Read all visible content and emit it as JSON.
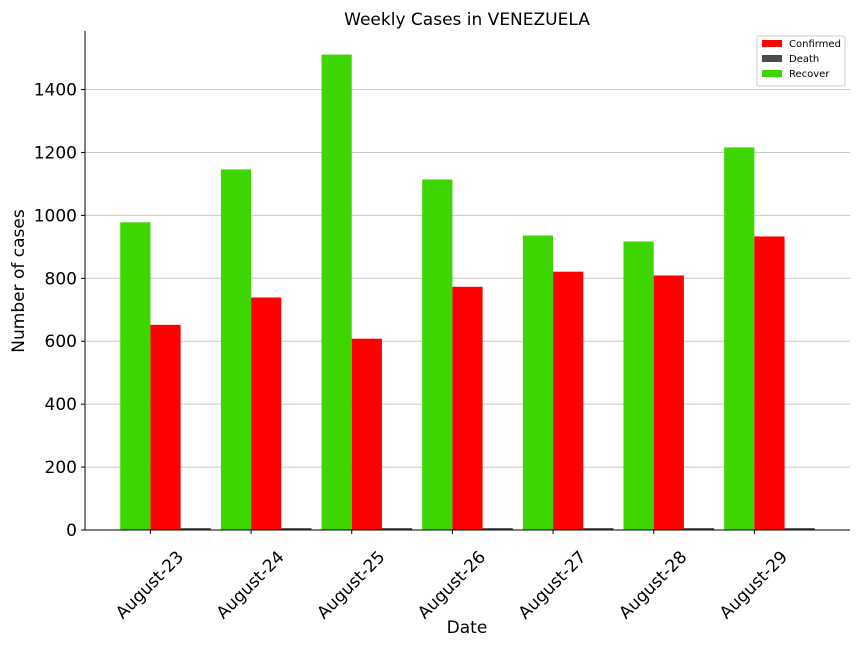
{
  "chart_data": {
    "type": "bar",
    "title": "Weekly Cases in VENEZUELA",
    "xlabel": "Date",
    "ylabel": "Number of cases",
    "categories": [
      "August-23",
      "August-24",
      "August-25",
      "August-26",
      "August-27",
      "August-28",
      "August-29"
    ],
    "series": [
      {
        "name": "Recover",
        "color": "#3ed600",
        "values": [
          978,
          1146,
          1511,
          1114,
          936,
          917,
          1216
        ]
      },
      {
        "name": "Confirmed",
        "color": "#ff0000",
        "values": [
          652,
          739,
          608,
          773,
          821,
          809,
          933
        ]
      },
      {
        "name": "Death",
        "color": "#4a4a4a",
        "values": [
          6,
          6,
          6,
          6,
          6,
          6,
          6
        ]
      }
    ],
    "legend_order": [
      "Confirmed",
      "Death",
      "Recover"
    ],
    "yticks": [
      0,
      200,
      400,
      600,
      800,
      1000,
      1200,
      1400
    ],
    "ylim": [
      0,
      1586
    ],
    "grid": "horizontal",
    "legend_position": "top-right"
  }
}
